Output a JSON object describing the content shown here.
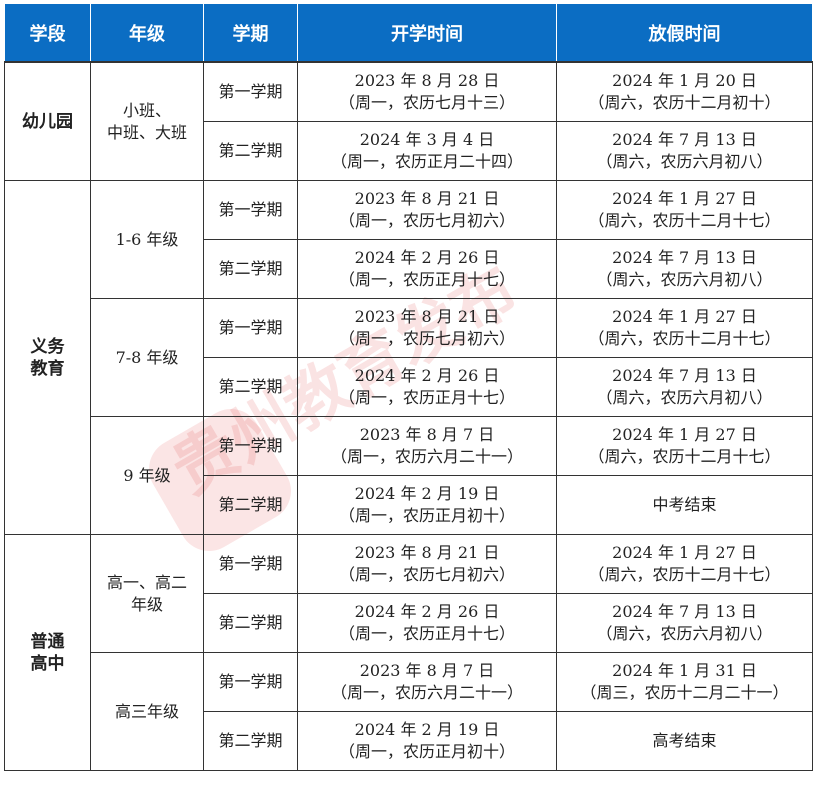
{
  "headers": [
    "学段",
    "年级",
    "学期",
    "开学时间",
    "放假时间"
  ],
  "watermark": "贵州教育发布",
  "stages": [
    {
      "name": "幼儿园",
      "grades": [
        {
          "name": "小班、\n中班、大班",
          "terms": [
            {
              "term": "第一学期",
              "start": "2023 年 8 月 28 日",
              "start_note": "（周一，农历七月十三）",
              "end": "2024 年 1 月 20 日",
              "end_note": "（周六，农历十二月初十）"
            },
            {
              "term": "第二学期",
              "start": "2024 年 3 月 4 日",
              "start_note": "（周一，农历正月二十四）",
              "end": "2024 年 7 月 13 日",
              "end_note": "（周六，农历六月初八）"
            }
          ]
        }
      ]
    },
    {
      "name": "义务\n教育",
      "grades": [
        {
          "name": "1-6 年级",
          "terms": [
            {
              "term": "第一学期",
              "start": "2023 年 8 月 21 日",
              "start_note": "（周一，农历七月初六）",
              "end": "2024 年 1 月 27 日",
              "end_note": "（周六，农历十二月十七）"
            },
            {
              "term": "第二学期",
              "start": "2024 年 2 月 26 日",
              "start_note": "（周一，农历正月十七）",
              "end": "2024 年 7 月 13 日",
              "end_note": "（周六，农历六月初八）"
            }
          ]
        },
        {
          "name": "7-8 年级",
          "terms": [
            {
              "term": "第一学期",
              "start": "2023 年 8 月 21 日",
              "start_note": "（周一，农历七月初六）",
              "end": "2024 年 1 月 27 日",
              "end_note": "（周六，农历十二月十七）"
            },
            {
              "term": "第二学期",
              "start": "2024 年 2 月 26 日",
              "start_note": "（周一，农历正月十七）",
              "end": "2024 年 7 月 13 日",
              "end_note": "（周六，农历六月初八）"
            }
          ]
        },
        {
          "name": "9 年级",
          "terms": [
            {
              "term": "第一学期",
              "start": "2023 年 8 月 7 日",
              "start_note": "（周一，农历六月二十一）",
              "end": "2024 年 1 月 27 日",
              "end_note": "（周六，农历十二月十七）"
            },
            {
              "term": "第二学期",
              "start": "2024 年 2 月 19 日",
              "start_note": "（周一，农历正月初十）",
              "end": "中考结束",
              "end_note": ""
            }
          ]
        }
      ]
    },
    {
      "name": "普通\n高中",
      "grades": [
        {
          "name": "高一、高二\n年级",
          "terms": [
            {
              "term": "第一学期",
              "start": "2023 年 8 月 21 日",
              "start_note": "（周一，农历七月初六）",
              "end": "2024 年 1 月 27 日",
              "end_note": "（周六，农历十二月十七）"
            },
            {
              "term": "第二学期",
              "start": "2024 年 2 月 26 日",
              "start_note": "（周一，农历正月十七）",
              "end": "2024 年 7 月 13 日",
              "end_note": "（周六，农历六月初八）"
            }
          ]
        },
        {
          "name": "高三年级",
          "terms": [
            {
              "term": "第一学期",
              "start": "2023 年 8 月 7 日",
              "start_note": "（周一，农历六月二十一）",
              "end": "2024 年 1 月 31 日",
              "end_note": "（周三，农历十二月二十一）"
            },
            {
              "term": "第二学期",
              "start": "2024 年 2 月 19 日",
              "start_note": "（周一，农历正月初十）",
              "end": "高考结束",
              "end_note": ""
            }
          ]
        }
      ]
    }
  ]
}
